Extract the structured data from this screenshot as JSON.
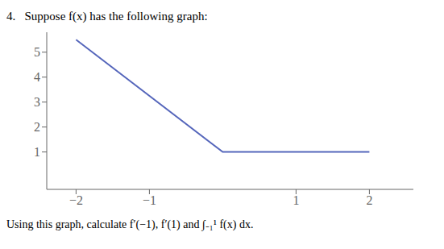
{
  "chart_data": {
    "type": "line",
    "title": "4.   Suppose f(x) has the following graph:",
    "annotations": [
      "Using this graph, calculate f′(−1), f′(1) and ∫₋₁¹ f(x) dx."
    ],
    "x": [
      -2,
      0,
      2
    ],
    "values": [
      5.5,
      1,
      1
    ],
    "color": "#5566bb",
    "xlim": [
      -2.4,
      2.6
    ],
    "ylim": [
      -0.5,
      5.8
    ],
    "xticks": [
      {
        "value": -2,
        "label": "−2"
      },
      {
        "value": -1,
        "label": "−1"
      },
      1,
      2
    ],
    "yticks": [
      1,
      2,
      3,
      4,
      5
    ],
    "grid": false
  }
}
